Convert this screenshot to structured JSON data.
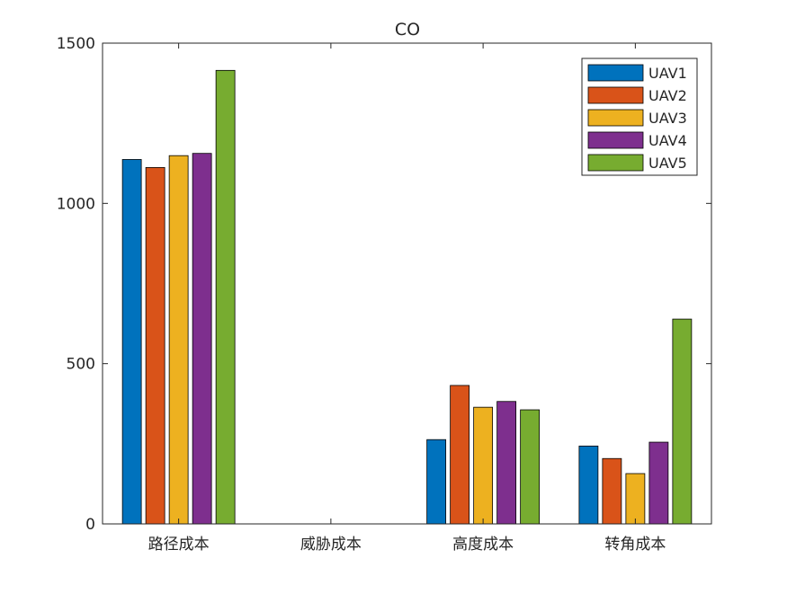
{
  "chart_data": {
    "type": "bar",
    "title": "CO",
    "xlabel": "",
    "ylabel": "",
    "categories": [
      "路径成本",
      "威胁成本",
      "高度成本",
      "转角成本"
    ],
    "ylim": [
      0,
      1500
    ],
    "yticks": [
      0,
      500,
      1000,
      1500
    ],
    "grid": false,
    "legend_position": "top-right",
    "series": [
      {
        "name": "UAV1",
        "color": "#0072BD",
        "values": [
          1137,
          0,
          263,
          243
        ]
      },
      {
        "name": "UAV2",
        "color": "#D95319",
        "values": [
          1112,
          0,
          432,
          204
        ]
      },
      {
        "name": "UAV3",
        "color": "#EDB120",
        "values": [
          1149,
          0,
          364,
          157
        ]
      },
      {
        "name": "UAV4",
        "color": "#7E2F8E",
        "values": [
          1156,
          0,
          382,
          255
        ]
      },
      {
        "name": "UAV5",
        "color": "#77AC30",
        "values": [
          1415,
          0,
          356,
          639
        ]
      }
    ]
  }
}
